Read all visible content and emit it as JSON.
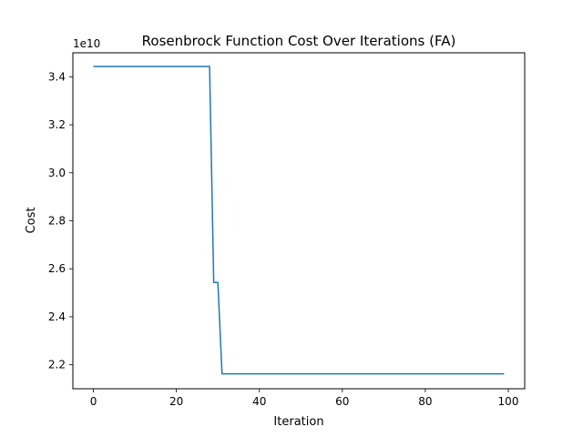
{
  "chart_data": {
    "type": "line",
    "title": "Rosenbrock Function Cost Over Iterations (FA)",
    "xlabel": "Iteration",
    "ylabel": "Cost",
    "y_offset_label": "1e10",
    "xlim": [
      -4.95,
      103.95
    ],
    "ylim": [
      2.1,
      3.5
    ],
    "x_ticks": [
      0,
      20,
      40,
      60,
      80,
      100
    ],
    "x_tick_labels": [
      "0",
      "20",
      "40",
      "60",
      "80",
      "100"
    ],
    "y_ticks": [
      2.2,
      2.4,
      2.6,
      2.8,
      3.0,
      3.2,
      3.4
    ],
    "y_tick_labels": [
      "2.2",
      "2.4",
      "2.6",
      "2.8",
      "3.0",
      "3.2",
      "3.4"
    ],
    "grid": false,
    "series": [
      {
        "name": "Cost",
        "color": "#1f77b4",
        "x": [
          0,
          28,
          29,
          30,
          31,
          99
        ],
        "y": [
          3.443,
          3.443,
          2.543,
          2.543,
          2.162,
          2.162
        ]
      }
    ]
  }
}
